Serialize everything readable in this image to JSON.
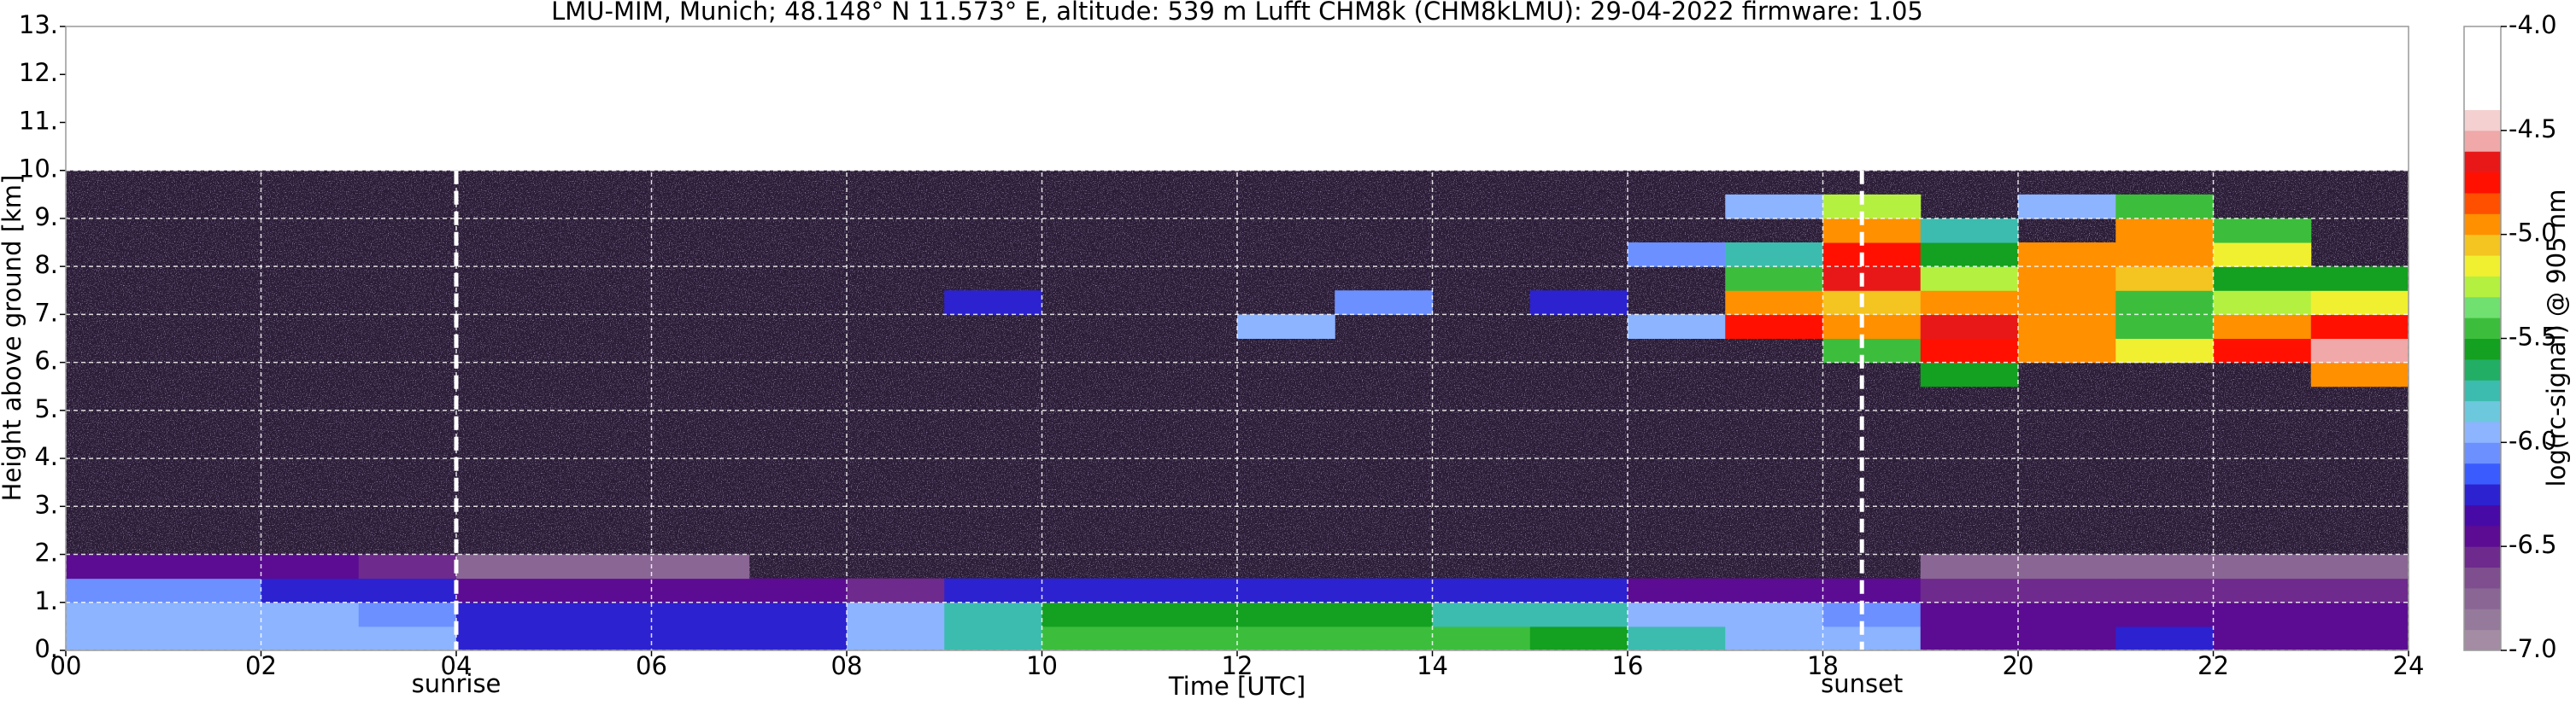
{
  "chart_data": {
    "type": "heatmap",
    "title": "LMU-MIM, Munich; 48.148° N 11.573° E, altitude: 539 m    Lufft CHM8k (CHM8kLMU): 29-04-2022    firmware: 1.05",
    "xlabel": "Time [UTC]",
    "ylabel": "Height above ground [km]",
    "colorbar_label": "log(rc-signal) @ 905 nm",
    "xlim": [
      0,
      24
    ],
    "ylim": [
      0,
      13
    ],
    "grid": true,
    "xticks": [
      {
        "value": 0,
        "label": "00"
      },
      {
        "value": 2,
        "label": "02"
      },
      {
        "value": 4,
        "label": "04"
      },
      {
        "value": 6,
        "label": "06"
      },
      {
        "value": 8,
        "label": "08"
      },
      {
        "value": 10,
        "label": "10"
      },
      {
        "value": 12,
        "label": "12"
      },
      {
        "value": 14,
        "label": "14"
      },
      {
        "value": 16,
        "label": "16"
      },
      {
        "value": 18,
        "label": "18"
      },
      {
        "value": 20,
        "label": "20"
      },
      {
        "value": 22,
        "label": "22"
      },
      {
        "value": 24,
        "label": "24"
      }
    ],
    "yticks": [
      {
        "value": 0,
        "label": "0."
      },
      {
        "value": 1,
        "label": "1."
      },
      {
        "value": 2,
        "label": "2."
      },
      {
        "value": 3,
        "label": "3."
      },
      {
        "value": 4,
        "label": "4."
      },
      {
        "value": 5,
        "label": "5."
      },
      {
        "value": 6,
        "label": "6."
      },
      {
        "value": 7,
        "label": "7."
      },
      {
        "value": 8,
        "label": "8."
      },
      {
        "value": 9,
        "label": "9."
      },
      {
        "value": 10,
        "label": "10."
      },
      {
        "value": 11,
        "label": "11."
      },
      {
        "value": 12,
        "label": "12."
      },
      {
        "value": 13,
        "label": "13."
      }
    ],
    "clim": [
      -7,
      -4
    ],
    "cticks": [
      {
        "value": -7,
        "label": "-7.0"
      },
      {
        "value": -6.5,
        "label": "-6.5"
      },
      {
        "value": -6,
        "label": "-6.0"
      },
      {
        "value": -5.5,
        "label": "-5.5"
      },
      {
        "value": -5,
        "label": "-5.0"
      },
      {
        "value": -4.5,
        "label": "-4.5"
      },
      {
        "value": -4,
        "label": "-4.0"
      }
    ],
    "colormap": [
      "#a48ca4",
      "#967a9c",
      "#8a6694",
      "#7e4e8e",
      "#6e2a8c",
      "#5c0c92",
      "#480aa6",
      "#2c22d0",
      "#3a5cff",
      "#6c90ff",
      "#8cb4ff",
      "#6cc8dc",
      "#3cbcae",
      "#22ae64",
      "#14a020",
      "#3cbe3c",
      "#70e070",
      "#b4f040",
      "#f0f030",
      "#f4c420",
      "#ff9000",
      "#ff5000",
      "#ff1000",
      "#e81818",
      "#f0a8a8",
      "#f4d0d0",
      "#ffffff",
      "#ffffff",
      "#ffffff",
      "#ffffff"
    ],
    "x_edges": [
      0,
      1,
      2,
      3,
      4,
      5,
      6,
      7,
      8,
      9,
      10,
      11,
      12,
      13,
      14,
      15,
      16,
      17,
      18,
      19,
      20,
      21,
      22,
      23,
      24
    ],
    "y_edges": [
      0,
      0.5,
      1,
      1.5,
      2,
      2.5,
      3,
      3.5,
      4,
      4.5,
      5,
      5.5,
      6,
      6.5,
      7,
      7.5,
      8,
      8.5,
      9,
      9.5,
      10
    ],
    "z": [
      [
        -5.9,
        -5.9,
        -5.9,
        -5.9,
        -6.3,
        -6.3,
        -6.3,
        -6.3,
        -6.0,
        -5.8,
        -5.5,
        -5.5,
        -5.5,
        -5.5,
        -5.5,
        -5.6,
        -5.8,
        -5.9,
        -6.0,
        -6.4,
        -6.4,
        -6.3,
        -6.4,
        -6.4
      ],
      [
        -6.0,
        -6.0,
        -6.0,
        -6.1,
        -6.3,
        -6.3,
        -6.3,
        -6.2,
        -6.0,
        -5.8,
        -5.6,
        -5.6,
        -5.6,
        -5.6,
        -5.7,
        -5.7,
        -5.9,
        -6.0,
        -6.1,
        -6.5,
        -6.5,
        -6.5,
        -6.5,
        -6.5
      ],
      [
        -6.1,
        -6.1,
        -6.2,
        -6.2,
        -6.4,
        -6.4,
        -6.4,
        -6.5,
        -6.6,
        -6.3,
        -6.3,
        -6.2,
        -6.3,
        -6.3,
        -6.3,
        -6.3,
        -6.4,
        -6.4,
        -6.4,
        -6.6,
        -6.6,
        -6.6,
        -6.6,
        -6.6
      ],
      [
        -6.5,
        -6.5,
        -6.5,
        -6.6,
        -6.7,
        -6.7,
        -6.8,
        null,
        null,
        null,
        null,
        null,
        null,
        null,
        null,
        null,
        null,
        null,
        null,
        -6.8,
        -6.8,
        -6.7,
        -6.7,
        -6.7
      ],
      [
        null,
        null,
        null,
        null,
        null,
        null,
        null,
        null,
        null,
        null,
        null,
        null,
        null,
        null,
        null,
        null,
        null,
        null,
        null,
        null,
        null,
        null,
        null,
        null
      ],
      [
        null,
        null,
        null,
        null,
        null,
        null,
        null,
        null,
        null,
        null,
        null,
        null,
        null,
        null,
        null,
        null,
        null,
        null,
        null,
        null,
        null,
        null,
        null,
        null
      ],
      [
        null,
        null,
        null,
        null,
        null,
        null,
        null,
        null,
        null,
        null,
        null,
        null,
        null,
        null,
        null,
        null,
        null,
        null,
        null,
        null,
        null,
        null,
        null,
        null
      ],
      [
        null,
        null,
        null,
        null,
        null,
        null,
        null,
        null,
        null,
        null,
        null,
        null,
        null,
        null,
        null,
        null,
        null,
        null,
        null,
        null,
        null,
        null,
        null,
        null
      ],
      [
        null,
        null,
        null,
        null,
        null,
        null,
        null,
        null,
        null,
        null,
        null,
        null,
        null,
        null,
        null,
        null,
        null,
        null,
        null,
        null,
        null,
        null,
        null,
        null
      ],
      [
        null,
        null,
        null,
        null,
        null,
        null,
        null,
        null,
        null,
        null,
        null,
        null,
        null,
        null,
        null,
        null,
        null,
        null,
        null,
        null,
        null,
        null,
        null,
        null
      ],
      [
        null,
        null,
        null,
        null,
        null,
        null,
        null,
        null,
        null,
        null,
        null,
        null,
        null,
        null,
        null,
        null,
        null,
        null,
        null,
        null,
        null,
        null,
        null,
        null
      ],
      [
        null,
        null,
        null,
        null,
        null,
        null,
        null,
        null,
        null,
        null,
        null,
        null,
        null,
        null,
        null,
        null,
        null,
        null,
        null,
        -5.6,
        null,
        null,
        null,
        -4.9
      ],
      [
        null,
        null,
        null,
        null,
        null,
        null,
        null,
        null,
        null,
        null,
        null,
        null,
        null,
        null,
        null,
        null,
        null,
        null,
        -5.4,
        -4.8,
        -4.9,
        -5.2,
        -4.8,
        -4.6
      ],
      [
        null,
        null,
        null,
        null,
        null,
        null,
        null,
        null,
        null,
        null,
        null,
        null,
        -6.0,
        null,
        null,
        null,
        -5.9,
        -4.8,
        -5.0,
        -4.7,
        -4.9,
        -5.4,
        -5.0,
        -4.8
      ],
      [
        null,
        null,
        null,
        null,
        null,
        null,
        null,
        null,
        null,
        -6.2,
        null,
        null,
        null,
        -6.1,
        null,
        -6.2,
        null,
        -4.9,
        -5.1,
        -4.9,
        -5.0,
        -5.5,
        -5.3,
        -5.2
      ],
      [
        null,
        null,
        null,
        null,
        null,
        null,
        null,
        null,
        null,
        null,
        null,
        null,
        null,
        null,
        null,
        null,
        null,
        -5.4,
        -4.7,
        -5.3,
        -4.9,
        -5.1,
        -5.6,
        -5.6
      ],
      [
        null,
        null,
        null,
        null,
        null,
        null,
        null,
        null,
        null,
        null,
        null,
        null,
        null,
        null,
        null,
        null,
        -6.1,
        -5.8,
        -4.8,
        -5.6,
        -5.0,
        -4.9,
        -5.2,
        null
      ],
      [
        null,
        null,
        null,
        null,
        null,
        null,
        null,
        null,
        null,
        null,
        null,
        null,
        null,
        null,
        null,
        null,
        null,
        null,
        -5.0,
        -5.8,
        null,
        -5.0,
        -5.4,
        null
      ],
      [
        null,
        null,
        null,
        null,
        null,
        null,
        null,
        null,
        null,
        null,
        null,
        null,
        null,
        null,
        null,
        null,
        null,
        -6.0,
        -5.3,
        null,
        -5.9,
        -5.4,
        null,
        null
      ],
      [
        null,
        null,
        null,
        null,
        null,
        null,
        null,
        null,
        null,
        null,
        null,
        null,
        null,
        null,
        null,
        null,
        null,
        null,
        null,
        null,
        null,
        null,
        null,
        null
      ]
    ],
    "annotations": [
      {
        "label": "sunrise",
        "x": 4
      },
      {
        "label": "sunset",
        "x": 18.4
      }
    ]
  }
}
